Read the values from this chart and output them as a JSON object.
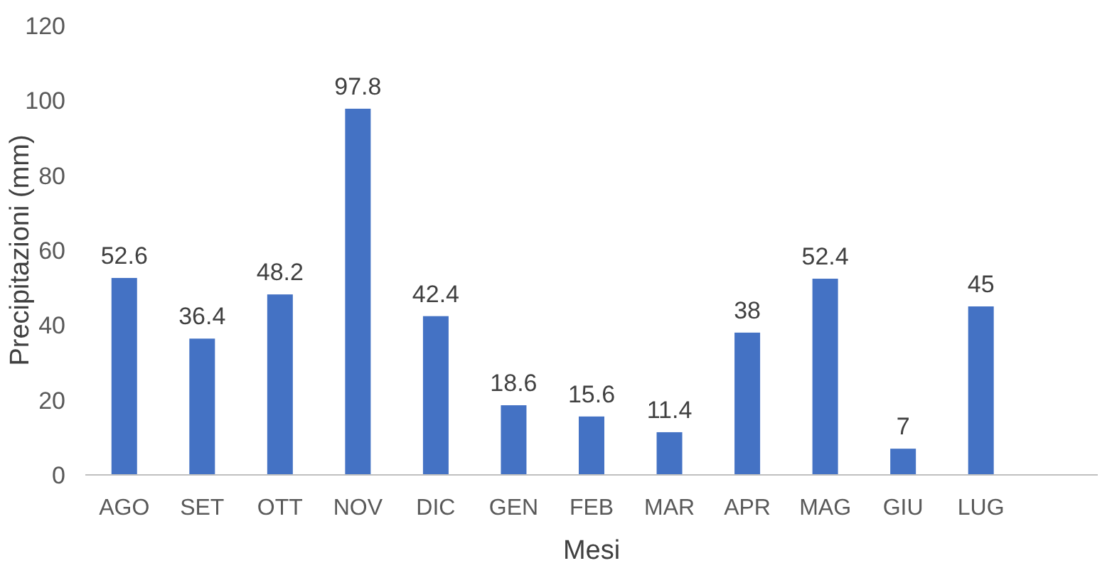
{
  "chart_data": {
    "type": "bar",
    "xlabel": "Mesi",
    "ylabel": "Precipitazioni (mm)",
    "categories": [
      "AGO",
      "SET",
      "OTT",
      "NOV",
      "DIC",
      "GEN",
      "FEB",
      "MAR",
      "APR",
      "MAG",
      "GIU",
      "LUG",
      null
    ],
    "values": [
      52.6,
      36.4,
      48.2,
      97.8,
      42.4,
      18.6,
      15.6,
      11.4,
      38,
      52.4,
      7,
      45,
      null
    ],
    "color": "#4472c4",
    "data_labels": true,
    "ylim": [
      0,
      120
    ],
    "yticks": [
      0,
      20,
      40,
      60,
      80,
      100,
      120
    ],
    "grid": false
  }
}
